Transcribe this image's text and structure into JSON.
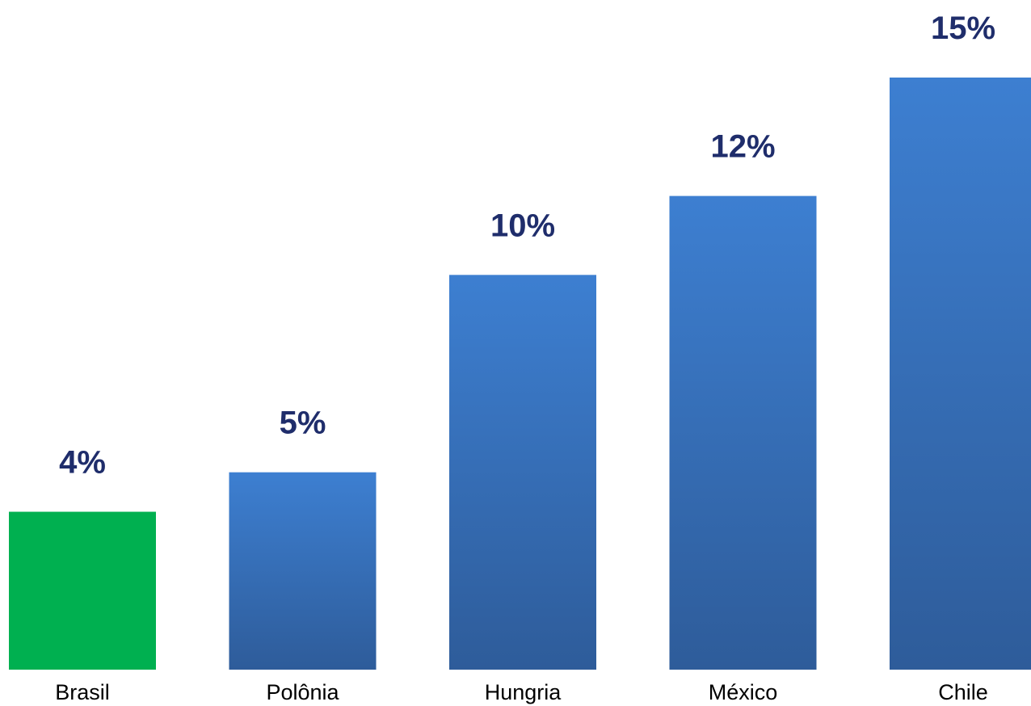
{
  "chart_data": {
    "type": "bar",
    "title": "",
    "xlabel": "",
    "ylabel": "",
    "categories": [
      "Brasil",
      "Polônia",
      "Hungria",
      "México",
      "Chile"
    ],
    "values": [
      4,
      5,
      10,
      12,
      15
    ],
    "value_labels": [
      "4%",
      "5%",
      "10%",
      "12%",
      "15%"
    ],
    "unit": "%",
    "ylim": [
      0,
      15
    ],
    "grid": false,
    "legend": "none",
    "colors": {
      "highlight": "#00B050",
      "bar_top": "#3D7FD1",
      "bar_bottom": "#2E5C9A",
      "value_label": "#1F2D6B",
      "category_label": "#000000"
    },
    "highlight_category": "Brasil"
  }
}
